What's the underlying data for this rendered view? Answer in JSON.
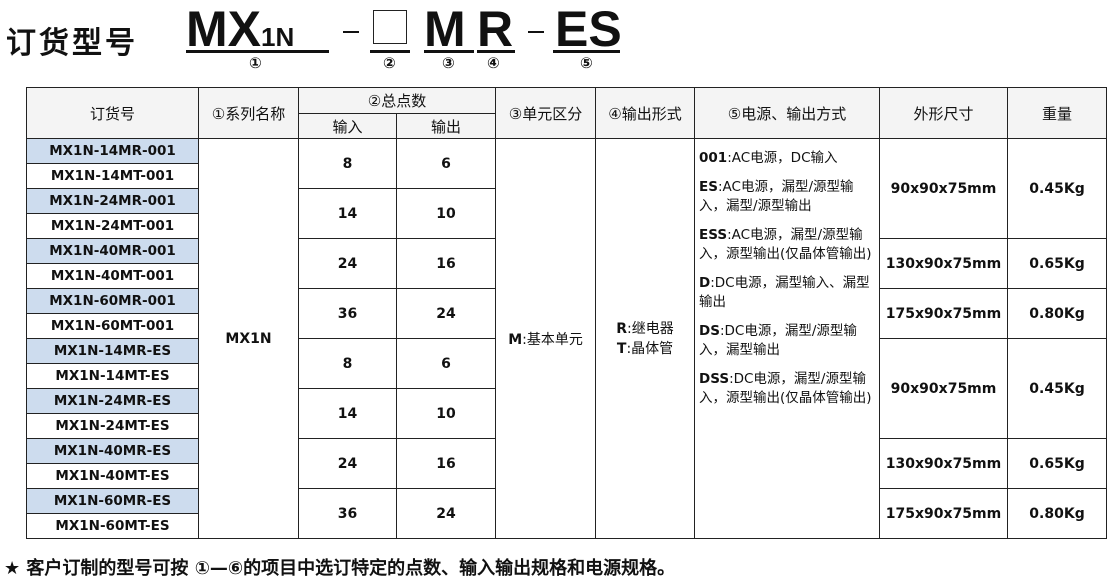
{
  "heading": {
    "title": "订货型号",
    "code_series": "MX",
    "code_sub": "1N",
    "code_unit": "M",
    "code_output": "R",
    "code_suffix": "ES",
    "labels": [
      "①",
      "②",
      "③",
      "④",
      "⑤"
    ]
  },
  "table": {
    "headers": {
      "order_no": "订货号",
      "series": "①系列名称",
      "points": "②总点数",
      "input": "输入",
      "output": "输出",
      "unit": "③单元区分",
      "output_type": "④输出形式",
      "power": "⑤电源、输出方式",
      "size": "外形尺寸",
      "weight": "重量"
    },
    "models": [
      "MX1N-14MR-001",
      "MX1N-14MT-001",
      "MX1N-24MR-001",
      "MX1N-24MT-001",
      "MX1N-40MR-001",
      "MX1N-40MT-001",
      "MX1N-60MR-001",
      "MX1N-60MT-001",
      "MX1N-14MR-ES",
      "MX1N-14MT-ES",
      "MX1N-24MR-ES",
      "MX1N-24MT-ES",
      "MX1N-40MR-ES",
      "MX1N-40MT-ES",
      "MX1N-60MR-ES",
      "MX1N-60MT-ES"
    ],
    "series": "MX1N",
    "points": [
      {
        "in": "8",
        "out": "6"
      },
      {
        "in": "14",
        "out": "10"
      },
      {
        "in": "24",
        "out": "16"
      },
      {
        "in": "36",
        "out": "24"
      },
      {
        "in": "8",
        "out": "6"
      },
      {
        "in": "14",
        "out": "10"
      },
      {
        "in": "24",
        "out": "16"
      },
      {
        "in": "36",
        "out": "24"
      }
    ],
    "unit": {
      "code": "M",
      "text": ":基本单元"
    },
    "output_type": [
      {
        "code": "R",
        "text": ":继电器"
      },
      {
        "code": "T",
        "text": ":晶体管"
      }
    ],
    "power_modes": [
      {
        "code": "001",
        "text": ":AC电源，DC输入"
      },
      {
        "code": "ES",
        "text": ":AC电源，漏型/源型输入，漏型/源型输出"
      },
      {
        "code": "ESS",
        "text": ":AC电源，漏型/源型输入，源型输出(仅晶体管输出)"
      },
      {
        "code": "D",
        "text": ":DC电源，漏型输入、漏型输出"
      },
      {
        "code": "DS",
        "text": ":DC电源，漏型/源型输入，漏型输出"
      },
      {
        "code": "DSS",
        "text": ":DC电源，漏型/源型输入，源型输出(仅晶体管输出)"
      }
    ],
    "sizes": [
      {
        "size": "90x90x75mm",
        "weight": "0.45Kg"
      },
      {
        "size": "130x90x75mm",
        "weight": "0.65Kg"
      },
      {
        "size": "175x90x75mm",
        "weight": "0.80Kg"
      },
      {
        "size": "90x90x75mm",
        "weight": "0.45Kg"
      },
      {
        "size": "130x90x75mm",
        "weight": "0.65Kg"
      },
      {
        "size": "175x90x75mm",
        "weight": "0.80Kg"
      }
    ]
  },
  "note": {
    "star": "★",
    "text": "客户订制的型号可按 ①—⑥的项目中选订特定的点数、输入输出规格和电源规格。"
  }
}
